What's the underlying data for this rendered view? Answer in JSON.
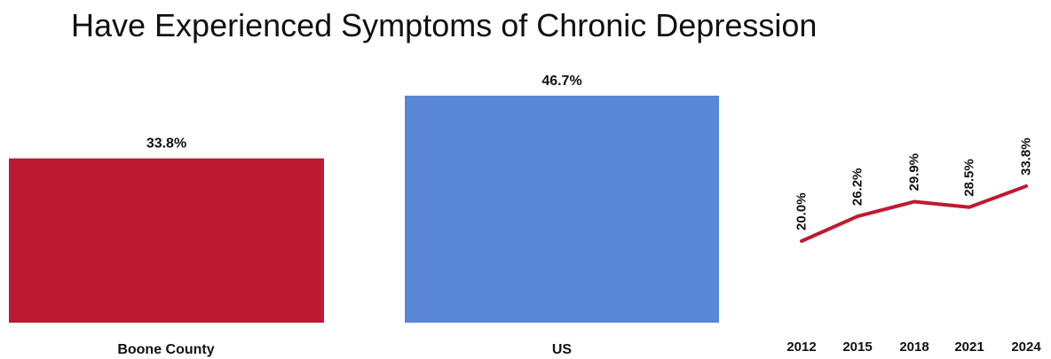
{
  "title": "Have Experienced Symptoms of Chronic Depression",
  "chart_data": [
    {
      "type": "bar",
      "categories": [
        "Boone County",
        "US"
      ],
      "values": [
        33.8,
        46.7
      ],
      "data_labels": [
        "33.8%",
        "46.7%"
      ],
      "colors": [
        "#be1a33",
        "#5a86d6"
      ],
      "ylim": [
        0,
        60
      ],
      "grid": false
    },
    {
      "type": "line",
      "x": [
        "2012",
        "2015",
        "2018",
        "2021",
        "2024"
      ],
      "values": [
        20.0,
        26.2,
        29.9,
        28.5,
        33.8
      ],
      "data_labels": [
        "20.0%",
        "26.2%",
        "29.9%",
        "28.5%",
        "33.8%"
      ],
      "color": "#be1a33",
      "grid": false
    }
  ]
}
